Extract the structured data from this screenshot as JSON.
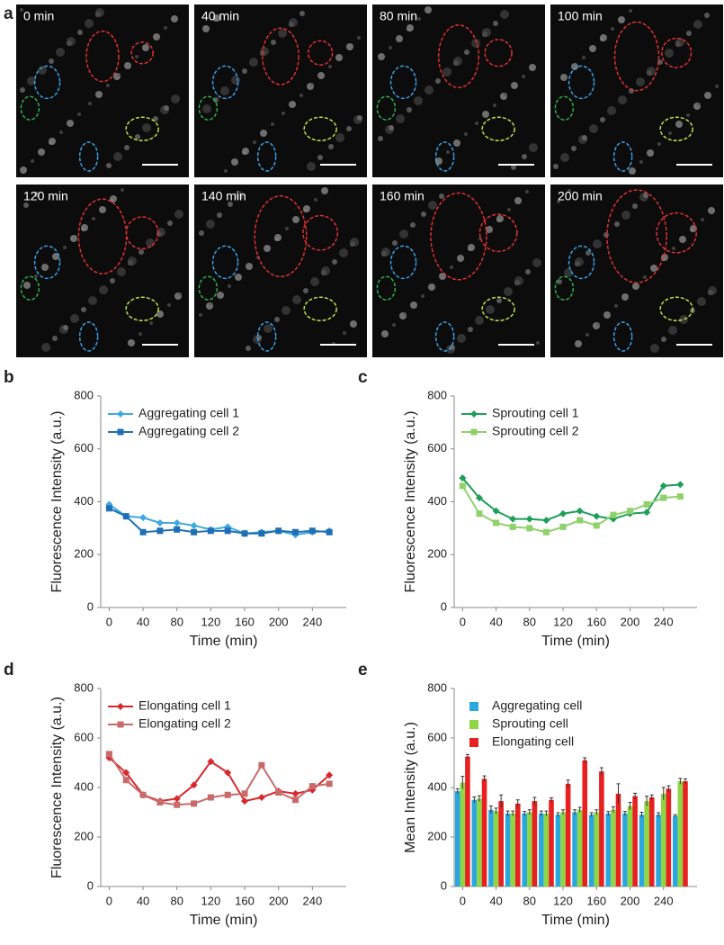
{
  "panel_labels": [
    "a",
    "b",
    "c",
    "d",
    "e"
  ],
  "images": [
    {
      "label": "0 min"
    },
    {
      "label": "40 min"
    },
    {
      "label": "80 min"
    },
    {
      "label": "100 min"
    },
    {
      "label": "120 min"
    },
    {
      "label": "140 min"
    },
    {
      "label": "160 min"
    },
    {
      "label": "200 min"
    }
  ],
  "chart_data": [
    {
      "type": "line",
      "xlabel": "Time (min)",
      "ylabel": "Fluorescence Intensity (a.u.)",
      "x": [
        0,
        20,
        40,
        60,
        80,
        100,
        120,
        140,
        160,
        180,
        200,
        220,
        240,
        260
      ],
      "xlim": [
        -10,
        280
      ],
      "xticks": [
        0,
        40,
        80,
        120,
        160,
        200,
        240
      ],
      "ylim": [
        0,
        800
      ],
      "yticks": [
        0,
        200,
        400,
        600,
        800
      ],
      "legend": "upper left",
      "series": [
        {
          "name": "Aggregating cell 1",
          "color": "#3fa9e0",
          "marker": "diamond",
          "values": [
            390,
            345,
            340,
            320,
            320,
            310,
            295,
            305,
            280,
            285,
            290,
            275,
            285,
            290
          ]
        },
        {
          "name": "Aggregating cell 2",
          "color": "#1f6fb5",
          "marker": "square",
          "values": [
            375,
            345,
            285,
            290,
            295,
            285,
            290,
            290,
            280,
            280,
            290,
            285,
            290,
            285
          ]
        }
      ]
    },
    {
      "type": "line",
      "xlabel": "Time (min)",
      "ylabel": "Fluorescence Intensity (a.u.)",
      "x": [
        0,
        20,
        40,
        60,
        80,
        100,
        120,
        140,
        160,
        180,
        200,
        220,
        240,
        260
      ],
      "xlim": [
        -10,
        280
      ],
      "xticks": [
        0,
        40,
        80,
        120,
        160,
        200,
        240
      ],
      "ylim": [
        0,
        800
      ],
      "yticks": [
        0,
        200,
        400,
        600,
        800
      ],
      "legend": "upper left",
      "series": [
        {
          "name": "Sprouting cell 1",
          "color": "#1e9e5a",
          "marker": "diamond",
          "values": [
            490,
            415,
            365,
            335,
            335,
            330,
            355,
            365,
            345,
            335,
            355,
            360,
            460,
            465
          ]
        },
        {
          "name": "Sprouting cell 2",
          "color": "#8fd16b",
          "marker": "square",
          "values": [
            460,
            355,
            320,
            305,
            300,
            285,
            305,
            330,
            310,
            350,
            365,
            390,
            415,
            420
          ]
        }
      ]
    },
    {
      "type": "line",
      "xlabel": "Time (min)",
      "ylabel": "Fluorescence Intensity (a.u.)",
      "x": [
        0,
        20,
        40,
        60,
        80,
        100,
        120,
        140,
        160,
        180,
        200,
        220,
        240,
        260
      ],
      "xlim": [
        -10,
        280
      ],
      "xticks": [
        0,
        40,
        80,
        120,
        160,
        200,
        240
      ],
      "ylim": [
        0,
        800
      ],
      "yticks": [
        0,
        200,
        400,
        600,
        800
      ],
      "legend": "upper left",
      "series": [
        {
          "name": "Elongating cell 1",
          "color": "#d8282e",
          "marker": "diamond",
          "values": [
            520,
            460,
            370,
            345,
            355,
            410,
            505,
            460,
            345,
            360,
            385,
            375,
            390,
            450
          ]
        },
        {
          "name": "Elongating cell 2",
          "color": "#c96a6a",
          "marker": "square",
          "values": [
            535,
            430,
            370,
            340,
            330,
            335,
            360,
            370,
            375,
            490,
            380,
            350,
            405,
            415
          ]
        }
      ]
    },
    {
      "type": "bar",
      "xlabel": "Time (min)",
      "ylabel": "Mean Intensity (a.u.)",
      "x": [
        0,
        20,
        40,
        60,
        80,
        100,
        120,
        140,
        160,
        180,
        200,
        220,
        240,
        260
      ],
      "xlim": [
        -10,
        280
      ],
      "xticks": [
        0,
        40,
        80,
        120,
        160,
        200,
        240
      ],
      "ylim": [
        0,
        800
      ],
      "yticks": [
        0,
        200,
        400,
        600,
        800
      ],
      "legend": "upper left",
      "series": [
        {
          "name": "Aggregating cell",
          "color": "#2aa7de",
          "values": [
            385,
            350,
            310,
            295,
            295,
            295,
            290,
            300,
            290,
            295,
            295,
            290,
            290,
            285
          ],
          "errors": [
            10,
            12,
            15,
            10,
            8,
            10,
            8,
            10,
            8,
            8,
            8,
            10,
            8,
            5
          ]
        },
        {
          "name": "Sprouting cell",
          "color": "#8fd645",
          "values": [
            420,
            355,
            305,
            295,
            300,
            295,
            300,
            310,
            300,
            310,
            325,
            345,
            375,
            425
          ],
          "errors": [
            25,
            12,
            12,
            10,
            10,
            10,
            10,
            10,
            10,
            12,
            15,
            20,
            25,
            12
          ]
        },
        {
          "name": "Elongating cell",
          "color": "#e8201f",
          "values": [
            525,
            435,
            345,
            335,
            345,
            350,
            415,
            510,
            465,
            375,
            365,
            360,
            395,
            425
          ],
          "errors": [
            8,
            12,
            25,
            15,
            15,
            8,
            15,
            10,
            15,
            40,
            12,
            10,
            12,
            10
          ]
        }
      ]
    }
  ]
}
